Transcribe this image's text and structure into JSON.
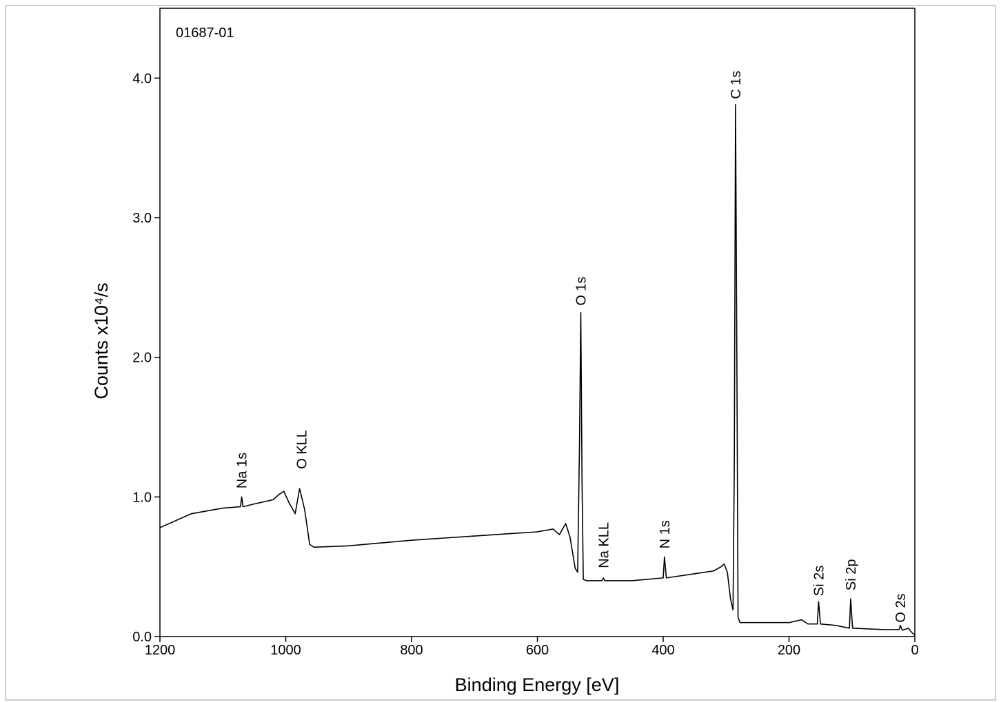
{
  "chart_data": {
    "type": "line",
    "subtitle": "01687-01",
    "x_label": "Binding Energy [eV]",
    "y_label": "Counts x10⁴/s",
    "color": "#000000",
    "xlim": [
      1200,
      0
    ],
    "xticks": [
      1200,
      1000,
      800,
      600,
      400,
      200,
      0
    ],
    "ylim": [
      0,
      4.5
    ],
    "yticks": [
      {
        "value": 0,
        "label": "0.0"
      },
      {
        "value": 1,
        "label": "1.0"
      },
      {
        "value": 2,
        "label": "2.0"
      },
      {
        "value": 3,
        "label": "3.0"
      },
      {
        "value": 4,
        "label": "4.0"
      }
    ],
    "x": [
      1200,
      1150,
      1100,
      1072,
      1070,
      1068,
      1050,
      1020,
      1010,
      1003,
      995,
      985,
      978,
      970,
      962,
      955,
      900,
      800,
      700,
      600,
      575,
      565,
      555,
      548,
      540,
      536,
      533,
      531,
      529,
      527,
      522,
      497,
      495,
      493,
      450,
      400,
      398,
      395,
      350,
      320,
      308,
      303,
      298,
      293,
      289,
      287,
      285,
      283,
      281,
      278,
      250,
      200,
      180,
      170,
      155,
      153,
      150,
      125,
      115,
      104,
      102,
      99,
      50,
      25,
      23,
      20,
      10,
      5,
      0
    ],
    "values": [
      0.78,
      0.88,
      0.92,
      0.93,
      1.0,
      0.93,
      0.95,
      0.98,
      1.02,
      1.04,
      0.96,
      0.88,
      1.06,
      0.91,
      0.66,
      0.64,
      0.65,
      0.69,
      0.72,
      0.75,
      0.77,
      0.73,
      0.81,
      0.71,
      0.49,
      0.46,
      1.4,
      2.32,
      1.1,
      0.41,
      0.4,
      0.4,
      0.42,
      0.4,
      0.4,
      0.42,
      0.57,
      0.42,
      0.45,
      0.47,
      0.5,
      0.52,
      0.46,
      0.27,
      0.19,
      1.2,
      3.81,
      2.1,
      0.14,
      0.1,
      0.1,
      0.1,
      0.12,
      0.09,
      0.09,
      0.25,
      0.09,
      0.08,
      0.07,
      0.06,
      0.27,
      0.06,
      0.05,
      0.05,
      0.08,
      0.045,
      0.06,
      0.03,
      0.01
    ],
    "annotations": [
      {
        "text": "Na 1s",
        "x": 1070,
        "y": 1.06
      },
      {
        "text": "O KLL",
        "x": 975,
        "y": 1.2
      },
      {
        "text": "O 1s",
        "x": 531,
        "y": 2.37
      },
      {
        "text": "Na KLL",
        "x": 495,
        "y": 0.49
      },
      {
        "text": "N 1s",
        "x": 398,
        "y": 0.63
      },
      {
        "text": "C 1s",
        "x": 285,
        "y": 3.85
      },
      {
        "text": "Si 2s",
        "x": 153,
        "y": 0.29
      },
      {
        "text": "Si 2p",
        "x": 102,
        "y": 0.33
      },
      {
        "text": "O 2s",
        "x": 23,
        "y": 0.1
      }
    ]
  }
}
